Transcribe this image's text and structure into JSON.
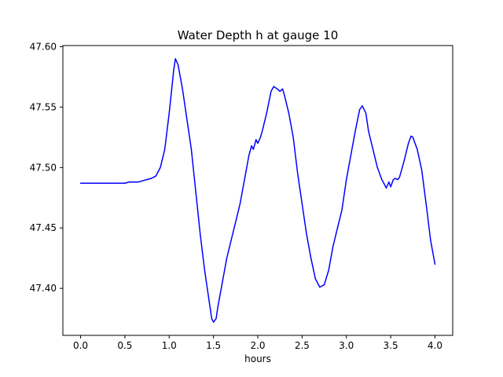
{
  "figure": {
    "background": "#ffffff"
  },
  "chart_data": {
    "type": "line",
    "title": "Water Depth h at gauge 10",
    "xlabel": "hours",
    "ylabel": "",
    "line_color": "#0000ff",
    "axis_color": "#000000",
    "grid": false,
    "legend": null,
    "xlim": [
      -0.2,
      4.2
    ],
    "ylim": [
      47.3611,
      47.6009
    ],
    "x_ticks": [
      {
        "value": 0.0,
        "label": "0.0"
      },
      {
        "value": 0.5,
        "label": "0.5"
      },
      {
        "value": 1.0,
        "label": "1.0"
      },
      {
        "value": 1.5,
        "label": "1.5"
      },
      {
        "value": 2.0,
        "label": "2.0"
      },
      {
        "value": 2.5,
        "label": "2.5"
      },
      {
        "value": 3.0,
        "label": "3.0"
      },
      {
        "value": 3.5,
        "label": "3.5"
      },
      {
        "value": 4.0,
        "label": "4.0"
      }
    ],
    "y_ticks": [
      {
        "value": 47.4,
        "label": "47.40"
      },
      {
        "value": 47.45,
        "label": "47.45"
      },
      {
        "value": 47.5,
        "label": "47.50"
      },
      {
        "value": 47.55,
        "label": "47.55"
      },
      {
        "value": 47.6,
        "label": "47.60"
      }
    ],
    "x": [
      0.0,
      0.05,
      0.1,
      0.15,
      0.2,
      0.25,
      0.3,
      0.35,
      0.4,
      0.45,
      0.5,
      0.55,
      0.6,
      0.65,
      0.7,
      0.75,
      0.8,
      0.85,
      0.9,
      0.95,
      1.0,
      1.05,
      1.07,
      1.1,
      1.15,
      1.2,
      1.25,
      1.3,
      1.35,
      1.4,
      1.45,
      1.48,
      1.5,
      1.53,
      1.55,
      1.6,
      1.65,
      1.7,
      1.75,
      1.8,
      1.85,
      1.9,
      1.93,
      1.95,
      1.98,
      2.0,
      2.03,
      2.05,
      2.1,
      2.15,
      2.18,
      2.22,
      2.25,
      2.28,
      2.3,
      2.35,
      2.4,
      2.45,
      2.5,
      2.55,
      2.6,
      2.65,
      2.7,
      2.75,
      2.8,
      2.85,
      2.9,
      2.95,
      3.0,
      3.05,
      3.1,
      3.15,
      3.18,
      3.22,
      3.25,
      3.3,
      3.35,
      3.4,
      3.43,
      3.45,
      3.48,
      3.5,
      3.53,
      3.55,
      3.58,
      3.6,
      3.65,
      3.7,
      3.73,
      3.75,
      3.8,
      3.85,
      3.9,
      3.95,
      4.0
    ],
    "y": [
      47.487,
      47.487,
      47.487,
      47.487,
      47.487,
      47.487,
      47.487,
      47.487,
      47.487,
      47.487,
      47.487,
      47.488,
      47.488,
      47.488,
      47.489,
      47.49,
      47.491,
      47.493,
      47.5,
      47.515,
      47.545,
      47.58,
      47.59,
      47.585,
      47.565,
      47.54,
      47.515,
      47.48,
      47.445,
      47.415,
      47.39,
      47.375,
      47.372,
      47.375,
      47.385,
      47.405,
      47.425,
      47.44,
      47.455,
      47.47,
      47.49,
      47.51,
      47.518,
      47.515,
      47.523,
      47.52,
      47.525,
      47.53,
      47.545,
      47.563,
      47.567,
      47.565,
      47.563,
      47.565,
      47.56,
      47.545,
      47.525,
      47.495,
      47.47,
      47.445,
      47.425,
      47.408,
      47.401,
      47.403,
      47.415,
      47.435,
      47.45,
      47.465,
      47.49,
      47.51,
      47.53,
      47.548,
      47.551,
      47.545,
      47.53,
      47.515,
      47.5,
      47.49,
      47.486,
      47.483,
      47.488,
      47.484,
      47.49,
      47.491,
      47.49,
      47.492,
      47.505,
      47.52,
      47.526,
      47.525,
      47.515,
      47.498,
      47.47,
      47.44,
      47.42
    ]
  }
}
